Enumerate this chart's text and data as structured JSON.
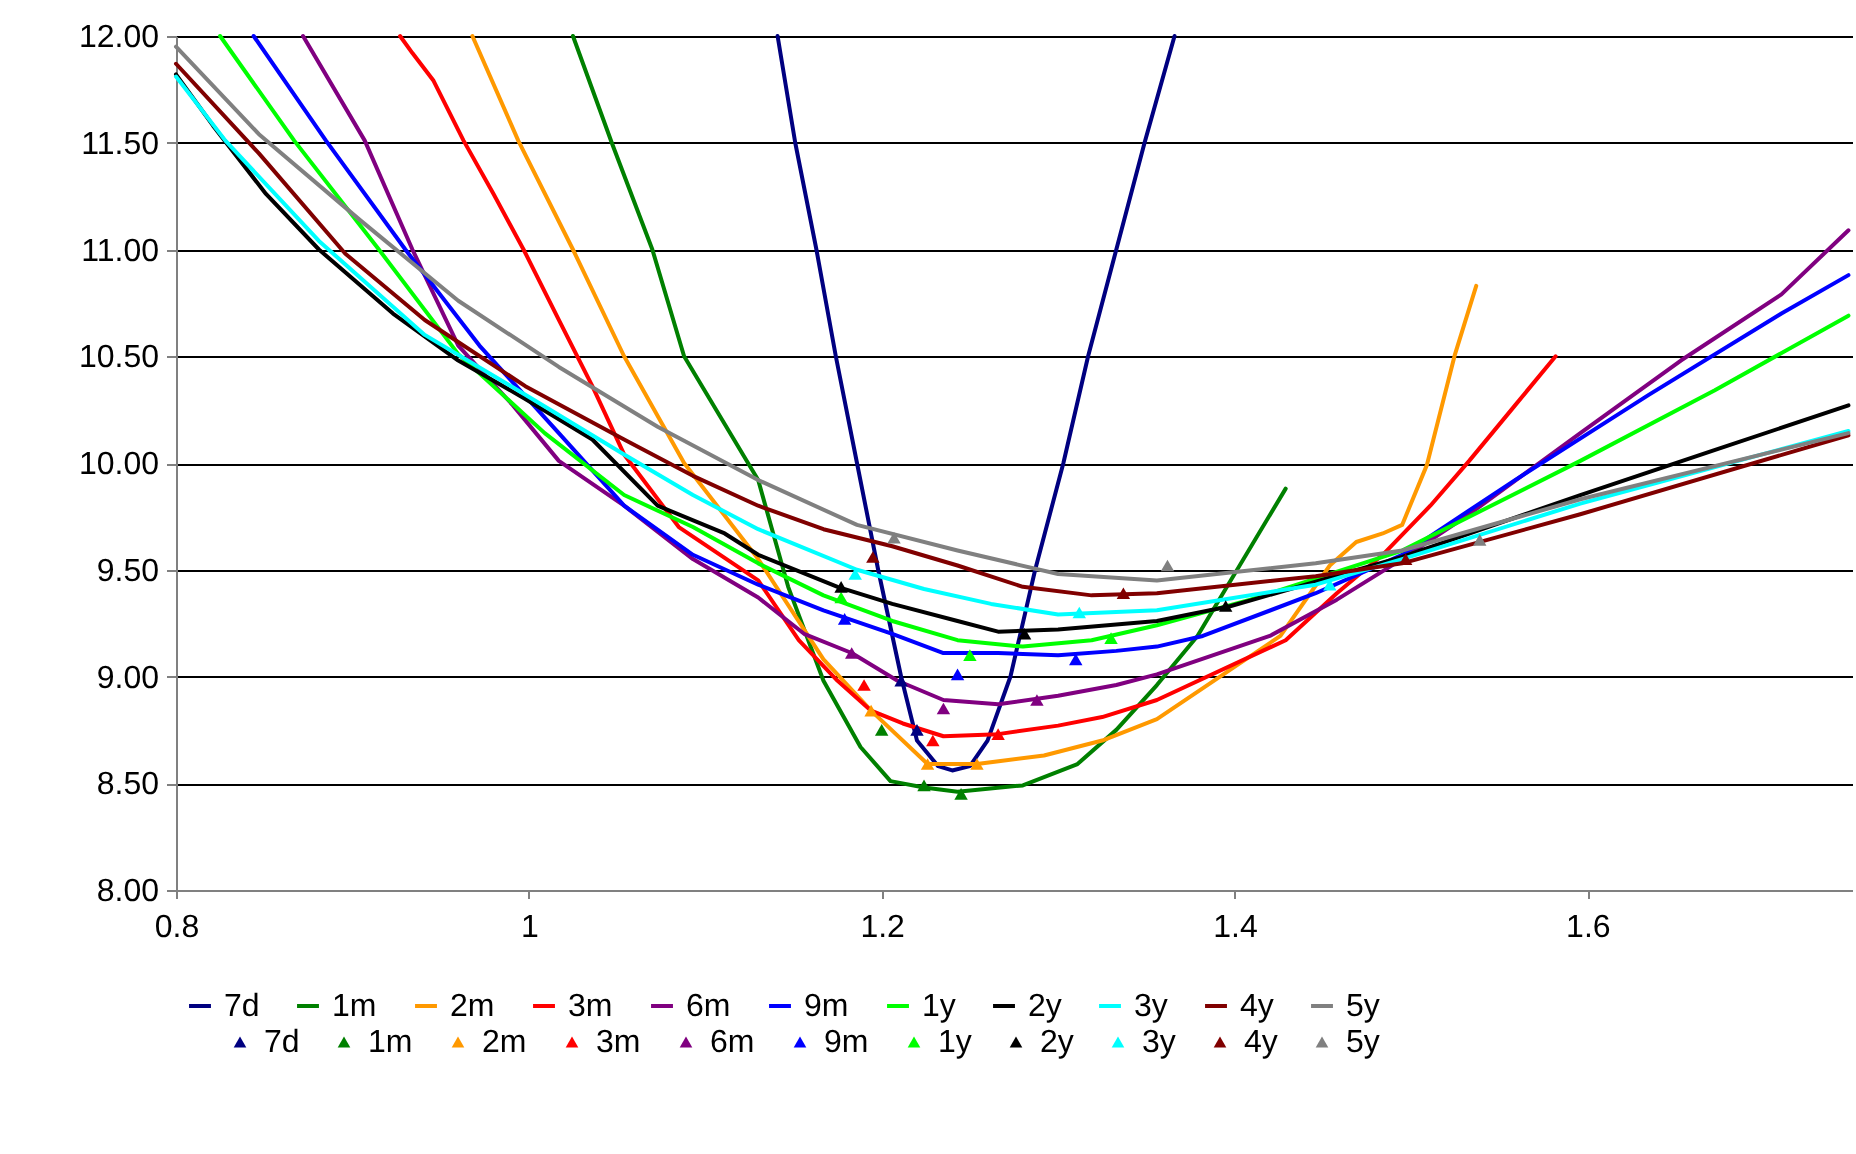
{
  "chart_data": {
    "type": "line",
    "xlim": [
      0.8,
      1.75
    ],
    "xticks": [
      0.8,
      1,
      1.2,
      1.4,
      1.6
    ],
    "ylim": [
      8,
      12
    ],
    "yticks": [
      {
        "value": 8,
        "label": "8.00"
      },
      {
        "value": 8.5,
        "label": "8.50"
      },
      {
        "value": 9,
        "label": "9.00"
      },
      {
        "value": 9.5,
        "label": "9.50"
      },
      {
        "value": 10,
        "label": "10.00"
      },
      {
        "value": 10.5,
        "label": "10.50"
      },
      {
        "value": 11,
        "label": "11.00"
      },
      {
        "value": 11.5,
        "label": "11.50"
      },
      {
        "value": 12,
        "label": "12.00"
      }
    ],
    "grid": "y",
    "legend": "bottom",
    "line_style": "solid",
    "series": [
      {
        "name": "7d",
        "color": "#000080",
        "x": [
          1.141,
          1.151,
          1.163,
          1.174,
          1.186,
          1.198,
          1.211,
          1.22,
          1.232,
          1.24,
          1.25,
          1.26,
          1.273,
          1.287,
          1.303,
          1.317,
          1.333,
          1.349,
          1.366
        ],
        "values": [
          12,
          11.5,
          11,
          10.5,
          10,
          9.5,
          9,
          8.7,
          8.58,
          8.56,
          8.58,
          8.7,
          9,
          9.5,
          10,
          10.5,
          11,
          11.5,
          12
        ]
      },
      {
        "name": "1m",
        "color": "#008000",
        "x": [
          1.025,
          1.047,
          1.07,
          1.088,
          1.13,
          1.147,
          1.167,
          1.188,
          1.205,
          1.224,
          1.243,
          1.28,
          1.311,
          1.333,
          1.356,
          1.379,
          1.429
        ],
        "values": [
          12,
          11.5,
          11,
          10.5,
          9.92,
          9.42,
          8.98,
          8.67,
          8.51,
          8.48,
          8.46,
          8.49,
          8.59,
          8.75,
          8.96,
          9.19,
          9.88
        ]
      },
      {
        "name": "2m",
        "color": "#ff9900",
        "x": [
          0.968,
          0.994,
          1.025,
          1.054,
          1.088,
          1.13,
          1.167,
          1.194,
          1.226,
          1.254,
          1.292,
          1.325,
          1.356,
          1.426,
          1.454,
          1.469,
          1.484,
          1.495,
          1.509,
          1.525,
          1.537
        ],
        "values": [
          12,
          11.51,
          11,
          10.5,
          10,
          9.55,
          9.08,
          8.84,
          8.59,
          8.59,
          8.63,
          8.7,
          8.8,
          9.19,
          9.52,
          9.63,
          9.67,
          9.71,
          9.99,
          10.51,
          10.83
        ]
      },
      {
        "name": "3m",
        "color": "#ff0000",
        "x": [
          0.927,
          0.934,
          0.946,
          0.963,
          0.98,
          0.997,
          1.017,
          1.036,
          1.054,
          1.085,
          1.13,
          1.153,
          1.175,
          1.194,
          1.212,
          1.235,
          1.266,
          1.3,
          1.325,
          1.356,
          1.429,
          1.458,
          1.484,
          1.511,
          1.533,
          1.559,
          1.582
        ],
        "values": [
          12,
          11.92,
          11.79,
          11.51,
          11.26,
          11,
          10.67,
          10.36,
          10.04,
          9.7,
          9.45,
          9.17,
          8.98,
          8.84,
          8.78,
          8.72,
          8.73,
          8.77,
          8.81,
          8.89,
          9.17,
          9.39,
          9.57,
          9.8,
          10.01,
          10.27,
          10.5
        ]
      },
      {
        "name": "6m",
        "color": "#800080",
        "x": [
          0.872,
          0.907,
          0.934,
          0.96,
          0.991,
          1.017,
          1.054,
          1.093,
          1.13,
          1.156,
          1.183,
          1.209,
          1.235,
          1.266,
          1.3,
          1.333,
          1.356,
          1.42,
          1.458,
          1.495,
          1.533,
          1.596,
          1.653,
          1.71,
          1.748
        ],
        "values": [
          12,
          11.51,
          11,
          10.55,
          10.27,
          10.01,
          9.8,
          9.55,
          9.37,
          9.2,
          9.11,
          8.98,
          8.89,
          8.87,
          8.91,
          8.96,
          9.01,
          9.19,
          9.36,
          9.55,
          9.76,
          10.14,
          10.48,
          10.79,
          11.09
        ]
      },
      {
        "name": "9m",
        "color": "#0000ff",
        "x": [
          0.844,
          0.885,
          0.93,
          0.972,
          1.017,
          1.054,
          1.093,
          1.13,
          1.167,
          1.206,
          1.235,
          1.266,
          1.3,
          1.333,
          1.356,
          1.382,
          1.446,
          1.495,
          1.559,
          1.635,
          1.71,
          1.748
        ],
        "values": [
          12,
          11.51,
          11,
          10.55,
          10.14,
          9.8,
          9.57,
          9.43,
          9.31,
          9.2,
          9.11,
          9.11,
          9.1,
          9.12,
          9.14,
          9.19,
          9.39,
          9.57,
          9.92,
          10.32,
          10.7,
          10.88
        ]
      },
      {
        "name": "1y",
        "color": "#00ff00",
        "x": [
          0.825,
          0.867,
          0.915,
          0.96,
          1.009,
          1.054,
          1.093,
          1.13,
          1.167,
          1.206,
          1.243,
          1.28,
          1.319,
          1.356,
          1.409,
          1.495,
          1.596,
          1.672,
          1.748
        ],
        "values": [
          12,
          11.51,
          11,
          10.51,
          10.14,
          9.85,
          9.7,
          9.53,
          9.38,
          9.26,
          9.17,
          9.14,
          9.17,
          9.24,
          9.36,
          9.59,
          10.01,
          10.34,
          10.69
        ]
      },
      {
        "name": "2y",
        "color": "#000000",
        "x": [
          0.8,
          0.821,
          0.851,
          0.881,
          0.923,
          0.96,
          0.998,
          1.036,
          1.073,
          1.111,
          1.13,
          1.175,
          1.206,
          1.243,
          1.266,
          1.3,
          1.356,
          1.398,
          1.495,
          1.596,
          1.672,
          1.748
        ],
        "values": [
          11.82,
          11.58,
          11.26,
          11,
          10.7,
          10.48,
          10.3,
          10.11,
          9.8,
          9.67,
          9.57,
          9.42,
          9.34,
          9.26,
          9.21,
          9.22,
          9.26,
          9.33,
          9.56,
          9.85,
          10.06,
          10.27
        ]
      },
      {
        "name": "3y",
        "color": "#00ffff",
        "x": [
          0.8,
          0.828,
          0.881,
          0.941,
          0.998,
          1.054,
          1.093,
          1.13,
          1.186,
          1.224,
          1.262,
          1.3,
          1.356,
          1.446,
          1.495,
          1.596,
          1.748
        ],
        "values": [
          11.81,
          11.51,
          11.04,
          10.6,
          10.32,
          10.04,
          9.85,
          9.69,
          9.5,
          9.41,
          9.34,
          9.29,
          9.31,
          9.43,
          9.55,
          9.81,
          10.15
        ]
      },
      {
        "name": "4y",
        "color": "#800000",
        "x": [
          0.8,
          0.847,
          0.896,
          0.941,
          0.998,
          1.054,
          1.093,
          1.13,
          1.167,
          1.206,
          1.243,
          1.28,
          1.319,
          1.356,
          1.446,
          1.495,
          1.596,
          1.748
        ],
        "values": [
          11.87,
          11.45,
          10.98,
          10.67,
          10.36,
          10.11,
          9.94,
          9.8,
          9.69,
          9.61,
          9.52,
          9.42,
          9.38,
          9.39,
          9.47,
          9.53,
          9.76,
          10.13
        ]
      },
      {
        "name": "5y",
        "color": "#808080",
        "x": [
          0.8,
          0.847,
          0.904,
          0.96,
          1.017,
          1.073,
          1.13,
          1.186,
          1.243,
          1.3,
          1.356,
          1.446,
          1.495,
          1.596,
          1.748
        ],
        "values": [
          11.95,
          11.54,
          11.14,
          10.76,
          10.45,
          10.17,
          9.92,
          9.71,
          9.59,
          9.48,
          9.45,
          9.53,
          9.59,
          9.83,
          10.14
        ]
      },
      {
        "name": "7d",
        "type": "scatter",
        "marker": "triangle",
        "color": "#000080",
        "x": [
          1.211,
          1.22
        ],
        "values": [
          8.98,
          8.75
        ]
      },
      {
        "name": "1m",
        "type": "scatter",
        "marker": "triangle",
        "color": "#008000",
        "x": [
          1.2,
          1.224,
          1.245
        ],
        "values": [
          8.75,
          8.49,
          8.45
        ]
      },
      {
        "name": "2m",
        "type": "scatter",
        "marker": "triangle",
        "color": "#ff9900",
        "x": [
          1.194,
          1.226,
          1.254
        ],
        "values": [
          8.84,
          8.59,
          8.59
        ]
      },
      {
        "name": "3m",
        "type": "scatter",
        "marker": "triangle",
        "color": "#ff0000",
        "x": [
          1.19,
          1.229,
          1.266
        ],
        "values": [
          8.96,
          8.7,
          8.73
        ]
      },
      {
        "name": "6m",
        "type": "scatter",
        "marker": "triangle",
        "color": "#800080",
        "x": [
          1.183,
          1.235,
          1.288
        ],
        "values": [
          9.11,
          8.85,
          8.89
        ]
      },
      {
        "name": "9m",
        "type": "scatter",
        "marker": "triangle",
        "color": "#0000ff",
        "x": [
          1.179,
          1.243,
          1.31
        ],
        "values": [
          9.27,
          9.01,
          9.08
        ]
      },
      {
        "name": "1y",
        "type": "scatter",
        "marker": "triangle",
        "color": "#00ff00",
        "x": [
          1.177,
          1.25,
          1.33
        ],
        "values": [
          9.37,
          9.1,
          9.18
        ]
      },
      {
        "name": "2y",
        "type": "scatter",
        "marker": "triangle",
        "color": "#000000",
        "x": [
          1.177,
          1.281,
          1.395
        ],
        "values": [
          9.42,
          9.2,
          9.33
        ]
      },
      {
        "name": "3y",
        "type": "scatter",
        "marker": "triangle",
        "color": "#00ffff",
        "x": [
          1.185,
          1.312,
          1.454
        ],
        "values": [
          9.48,
          9.3,
          9.43
        ]
      },
      {
        "name": "4y",
        "type": "scatter",
        "marker": "triangle",
        "color": "#800000",
        "x": [
          1.195,
          1.337,
          1.497
        ],
        "values": [
          9.56,
          9.39,
          9.55
        ]
      },
      {
        "name": "5y",
        "type": "scatter",
        "marker": "triangle",
        "color": "#808080",
        "x": [
          1.207,
          1.362,
          1.539
        ],
        "values": [
          9.65,
          9.52,
          9.64
        ]
      }
    ]
  }
}
